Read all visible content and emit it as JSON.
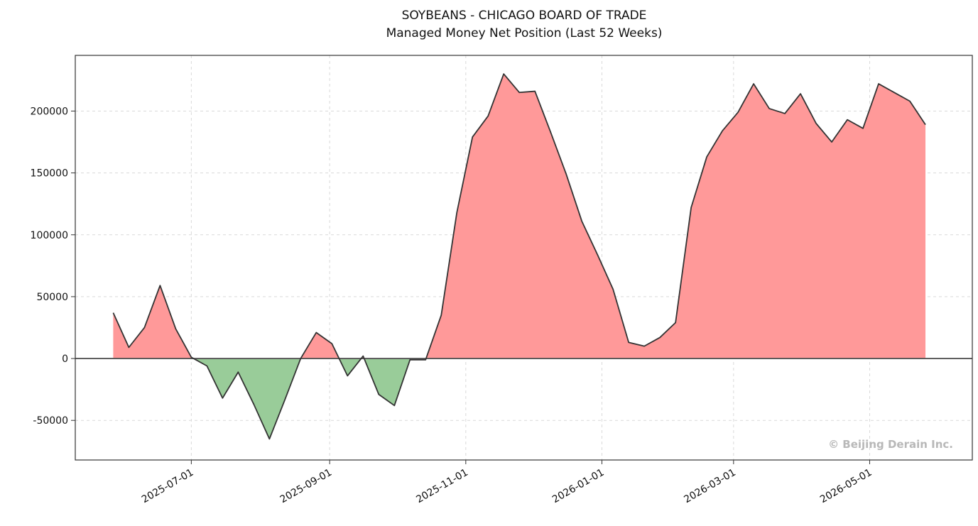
{
  "chart_data": {
    "type": "area",
    "title": "SOYBEANS - CHICAGO BOARD OF TRADE",
    "subtitle": "Managed Money Net Position (Last 52 Weeks)",
    "xlabel": "",
    "ylabel": "",
    "xlim": [
      "2025-05-10",
      "2026-06-16"
    ],
    "ylim": [
      -82000,
      245000
    ],
    "x_ticks": [
      "2025-07-01",
      "2025-09-01",
      "2025-11-01",
      "2026-01-01",
      "2026-03-01",
      "2026-05-01"
    ],
    "y_ticks": [
      -50000,
      0,
      50000,
      100000,
      150000,
      200000
    ],
    "grid": true,
    "legend": "none",
    "colors": {
      "positive_fill": "#ff9999",
      "negative_fill": "#99cc99",
      "line": "#333333",
      "zero_line": "#555555",
      "grid": "#d9d9d9",
      "frame": "#333333"
    },
    "x": [
      "2025-05-27",
      "2025-06-03",
      "2025-06-10",
      "2025-06-17",
      "2025-06-24",
      "2025-07-01",
      "2025-07-08",
      "2025-07-15",
      "2025-07-22",
      "2025-07-29",
      "2025-08-05",
      "2025-08-12",
      "2025-08-19",
      "2025-08-26",
      "2025-09-02",
      "2025-09-09",
      "2025-09-16",
      "2025-09-23",
      "2025-09-30",
      "2025-10-07",
      "2025-10-14",
      "2025-10-21",
      "2025-10-28",
      "2025-11-04",
      "2025-11-11",
      "2025-11-18",
      "2025-11-25",
      "2025-12-02",
      "2025-12-09",
      "2025-12-16",
      "2025-12-23",
      "2025-12-30",
      "2026-01-06",
      "2026-01-13",
      "2026-01-20",
      "2026-01-27",
      "2026-02-03",
      "2026-02-10",
      "2026-02-17",
      "2026-02-24",
      "2026-03-03",
      "2026-03-10",
      "2026-03-17",
      "2026-03-24",
      "2026-03-31",
      "2026-04-07",
      "2026-04-14",
      "2026-04-21",
      "2026-04-28",
      "2026-05-05",
      "2026-05-12",
      "2026-05-19",
      "2026-05-26"
    ],
    "values": [
      37000,
      9000,
      25000,
      59000,
      24000,
      1000,
      -6000,
      -32000,
      -11000,
      -37000,
      -65000,
      -33000,
      0,
      21000,
      12000,
      -14000,
      2000,
      -29000,
      -38000,
      -1000,
      -1000,
      35000,
      118000,
      179000,
      196000,
      230000,
      215000,
      216000,
      183000,
      149000,
      111000,
      84000,
      56000,
      13000,
      10000,
      17000,
      29000,
      122000,
      163000,
      184000,
      199000,
      222000,
      202000,
      198000,
      214000,
      190000,
      175000,
      193000,
      186000,
      222000,
      215000,
      208000,
      189000
    ]
  },
  "watermark": "© Beijing Derain Inc."
}
